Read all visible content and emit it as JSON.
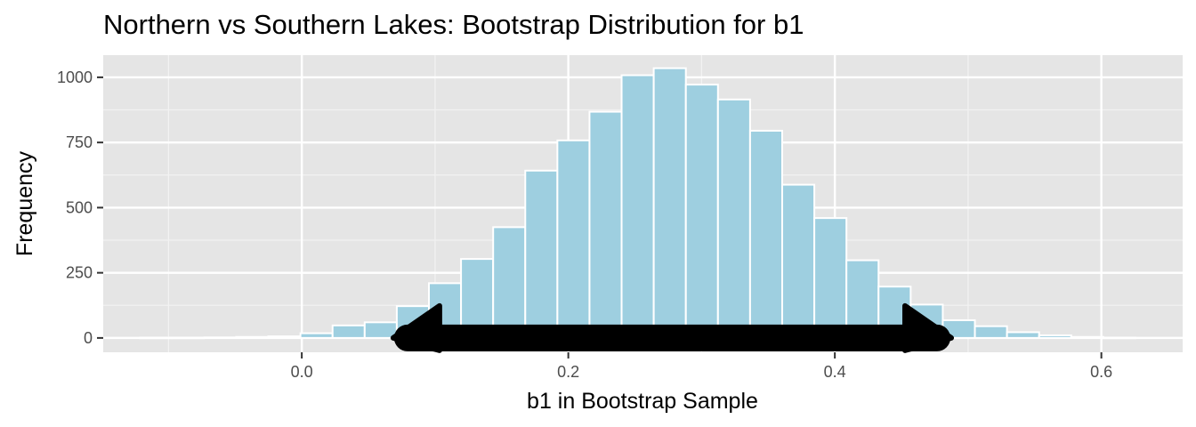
{
  "chart_data": {
    "type": "bar",
    "subtype": "histogram",
    "title": "Northern vs Southern Lakes: Bootstrap Distribution for b1",
    "xlabel": "b1 in Bootstrap Sample",
    "ylabel": "Frequency",
    "xlim": [
      -0.149,
      0.661
    ],
    "ylim": [
      -55,
      1085
    ],
    "xticks": [
      {
        "value": 0.0,
        "label": "0.0"
      },
      {
        "value": 0.2,
        "label": "0.2"
      },
      {
        "value": 0.4,
        "label": "0.4"
      },
      {
        "value": 0.6,
        "label": "0.6"
      }
    ],
    "yticks": [
      {
        "value": 0,
        "label": "0"
      },
      {
        "value": 250,
        "label": "250"
      },
      {
        "value": 500,
        "label": "500"
      },
      {
        "value": 750,
        "label": "750"
      },
      {
        "value": 1000,
        "label": "1000"
      }
    ],
    "binwidth": 0.0241,
    "bin_starts": [
      -0.1215,
      -0.0974,
      -0.0733,
      -0.0492,
      -0.0251,
      -0.001,
      0.0231,
      0.0472,
      0.0713,
      0.0954,
      0.1195,
      0.1436,
      0.1677,
      0.1918,
      0.2159,
      0.24,
      0.2641,
      0.2882,
      0.3123,
      0.3364,
      0.3605,
      0.3846,
      0.4087,
      0.4328,
      0.4569,
      0.481,
      0.5051,
      0.5292,
      0.5533,
      0.5774,
      0.6015
    ],
    "values": [
      1,
      1,
      2,
      4,
      6,
      18,
      48,
      60,
      122,
      210,
      303,
      425,
      642,
      758,
      868,
      1008,
      1035,
      972,
      915,
      795,
      588,
      460,
      298,
      197,
      128,
      68,
      45,
      22,
      10,
      4,
      1
    ],
    "fill_color": "#9ecfe0",
    "bar_outline_color": "#ffffff",
    "panel_color": "#e5e5e5",
    "grid": true,
    "annotation": {
      "type": "double-headed-arrow",
      "from": 0.102,
      "to": 0.454,
      "y": 0,
      "color": "#000000"
    }
  }
}
